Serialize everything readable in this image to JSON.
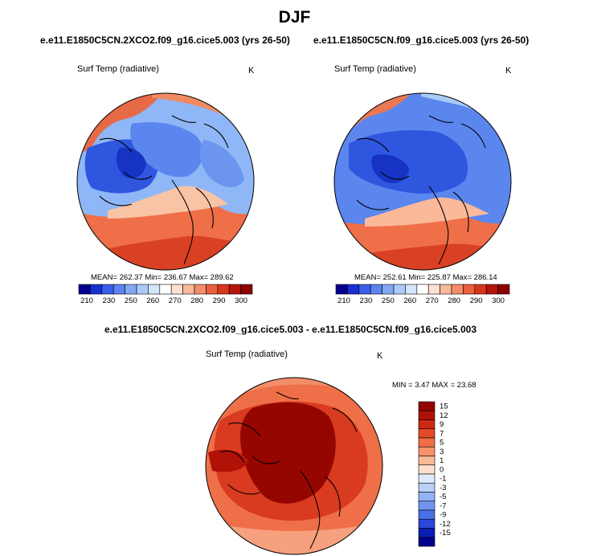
{
  "title": "DJF",
  "panels": [
    {
      "title": "e.e11.E1850C5CN.2XCO2.f09_g16.cice5.003 (yrs 26-50)",
      "variable": "Surf Temp (radiative)",
      "units": "K",
      "stats": "MEAN= 262.37  Min= 236.67  Max= 289.62"
    },
    {
      "title": "e.e11.E1850C5CN.f09_g16.cice5.003 (yrs 26-50)",
      "variable": "Surf Temp (radiative)",
      "units": "K",
      "stats": "MEAN= 252.61  Min= 225.87  Max= 286.14"
    },
    {
      "title": "e.e11.E1850C5CN.2XCO2.f09_g16.cice5.003 - e.e11.E1850C5CN.f09_g16.cice5.003",
      "variable": "Surf Temp (radiative)",
      "units": "K",
      "stats": "MIN =   3.47 MAX =  23.68"
    }
  ],
  "colorbars": {
    "absolute": {
      "labels": [
        "210",
        "230",
        "250",
        "260",
        "270",
        "280",
        "290",
        "300"
      ],
      "colors": [
        "#02008c",
        "#1a2fd2",
        "#3b5ee8",
        "#5c83ef",
        "#82a9f4",
        "#aacbf8",
        "#d4e6fb",
        "#ffffff",
        "#fde0d0",
        "#f9b99b",
        "#f48d6a",
        "#ea5f3e",
        "#d8361c",
        "#b5140a",
        "#8c0300"
      ]
    },
    "difference": {
      "labels": [
        "15",
        "12",
        "9",
        "7",
        "5",
        "3",
        "1",
        "0",
        "-1",
        "-3",
        "-5",
        "-7",
        "-9",
        "-12",
        "-15"
      ],
      "colors": [
        "#930500",
        "#b01208",
        "#cd2a12",
        "#e34a27",
        "#f06d45",
        "#f6936b",
        "#fab999",
        "#fddfcd",
        "#ddeafc",
        "#b9d1f8",
        "#92b3f4",
        "#6e93ef",
        "#4a6fe6",
        "#2a47d8",
        "#0a1eb4",
        "#00008c"
      ]
    }
  }
}
